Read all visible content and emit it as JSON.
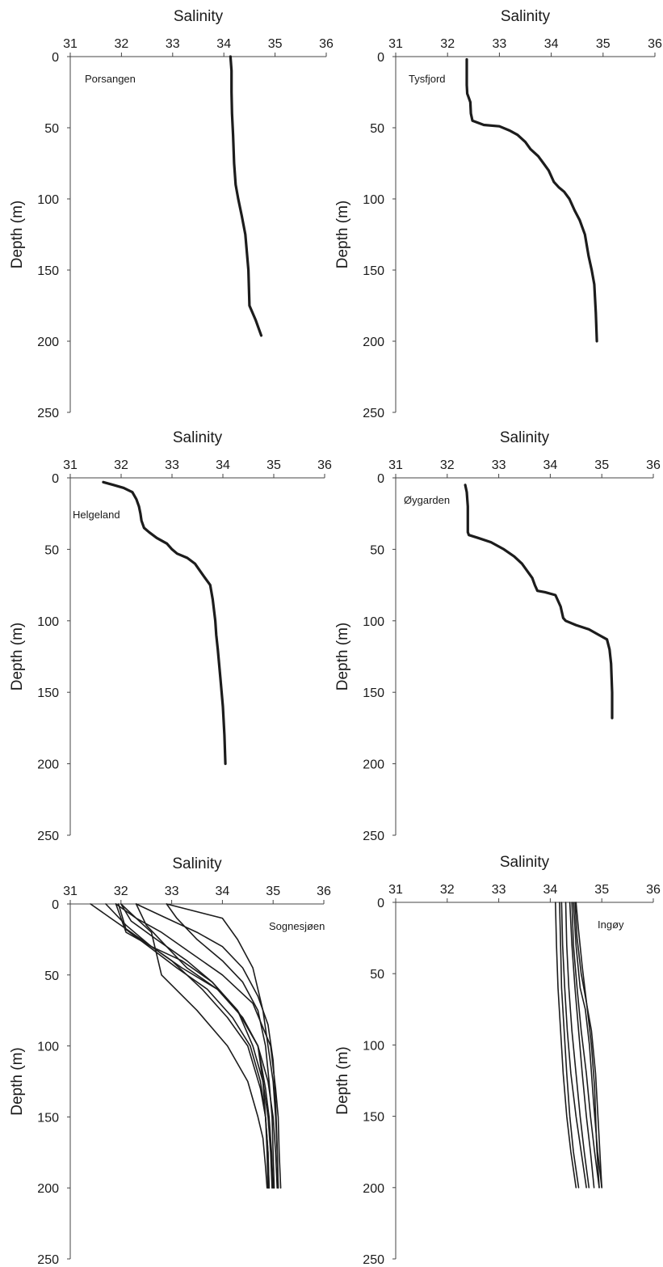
{
  "colors": {
    "line": "#1c1c1c",
    "axis": "#444444",
    "background": "#ffffff"
  },
  "chart_data": [
    {
      "type": "line",
      "title": "Salinity",
      "ylabel": "Depth (m)",
      "label": "Porsangen",
      "xlim": [
        31,
        36
      ],
      "ylim": [
        0,
        250
      ],
      "y_inverted": true,
      "xticks": [
        "31",
        "32",
        "33",
        "34",
        "35",
        "36"
      ],
      "yticks": [
        "0",
        "50",
        "100",
        "150",
        "200",
        "250"
      ],
      "series": [
        {
          "x": [
            34.13,
            34.15,
            34.15,
            34.16,
            34.18,
            34.2,
            34.23,
            34.28,
            34.35,
            34.42,
            34.48,
            34.5,
            34.62,
            34.73
          ],
          "y": [
            0,
            10,
            25,
            40,
            55,
            75,
            90,
            100,
            112,
            125,
            150,
            175,
            185,
            196
          ]
        }
      ]
    },
    {
      "type": "line",
      "title": "Salinity",
      "ylabel": "Depth (m)",
      "label": "Tysfjord",
      "xlim": [
        31,
        36
      ],
      "ylim": [
        0,
        250
      ],
      "y_inverted": true,
      "xticks": [
        "31",
        "32",
        "33",
        "34",
        "35",
        "36"
      ],
      "yticks": [
        "0",
        "50",
        "100",
        "150",
        "200",
        "250"
      ],
      "series": [
        {
          "x": [
            32.37,
            32.37,
            32.37,
            32.38,
            32.4,
            32.44,
            32.45,
            32.48,
            32.7,
            33.0,
            33.2,
            33.35,
            33.5,
            33.6,
            33.75,
            33.85,
            33.95,
            34.05,
            34.15,
            34.25,
            34.35,
            34.45,
            34.55,
            34.65,
            34.72,
            34.78,
            34.83,
            34.86,
            34.88
          ],
          "y": [
            2,
            10,
            20,
            26,
            28,
            32,
            40,
            45,
            48,
            49,
            52,
            55,
            60,
            65,
            70,
            75,
            80,
            88,
            92,
            95,
            100,
            108,
            115,
            125,
            140,
            150,
            160,
            180,
            200
          ]
        }
      ]
    },
    {
      "type": "line",
      "title": "Salinity",
      "ylabel": "Depth (m)",
      "label": "Helgeland",
      "xlim": [
        31,
        36
      ],
      "ylim": [
        0,
        250
      ],
      "y_inverted": true,
      "xticks": [
        "31",
        "32",
        "33",
        "34",
        "35",
        "36"
      ],
      "yticks": [
        "0",
        "50",
        "100",
        "150",
        "200",
        "250"
      ],
      "series": [
        {
          "x": [
            31.65,
            31.85,
            32.05,
            32.22,
            32.3,
            32.35,
            32.38,
            32.4,
            32.45,
            32.55,
            32.7,
            32.9,
            33.0,
            33.1,
            33.3,
            33.45,
            33.55,
            33.65,
            33.75,
            33.8,
            33.85,
            33.87,
            33.9,
            33.95,
            34.0,
            34.03,
            34.05
          ],
          "y": [
            3,
            5,
            7,
            10,
            15,
            20,
            25,
            30,
            35,
            38,
            42,
            46,
            50,
            53,
            56,
            60,
            65,
            70,
            75,
            85,
            100,
            110,
            120,
            140,
            160,
            180,
            200
          ]
        }
      ]
    },
    {
      "type": "line",
      "title": "Salinity",
      "ylabel": "Depth (m)",
      "label": "Øygarden",
      "xlim": [
        31,
        36
      ],
      "ylim": [
        0,
        250
      ],
      "y_inverted": true,
      "xticks": [
        "31",
        "32",
        "33",
        "34",
        "35",
        "36"
      ],
      "yticks": [
        "0",
        "50",
        "100",
        "150",
        "200",
        "250"
      ],
      "series": [
        {
          "x": [
            32.35,
            32.38,
            32.4,
            32.4,
            32.4,
            32.42,
            32.6,
            32.85,
            33.1,
            33.3,
            33.45,
            33.55,
            33.65,
            33.7,
            33.75,
            33.9,
            34.1,
            34.2,
            34.25,
            34.3,
            34.5,
            34.75,
            34.95,
            35.1,
            35.15,
            35.18,
            35.2,
            35.2
          ],
          "y": [
            5,
            10,
            20,
            30,
            38,
            40,
            42,
            45,
            50,
            55,
            60,
            65,
            70,
            75,
            79,
            80,
            82,
            90,
            98,
            100,
            103,
            106,
            110,
            113,
            120,
            130,
            150,
            168
          ]
        }
      ]
    },
    {
      "type": "line",
      "title": "Salinity",
      "ylabel": "Depth (m)",
      "label": "Sognesjøen",
      "xlim": [
        31,
        36
      ],
      "ylim": [
        0,
        250
      ],
      "y_inverted": true,
      "xticks": [
        "31",
        "32",
        "33",
        "34",
        "35",
        "36"
      ],
      "yticks": [
        "0",
        "50",
        "100",
        "150",
        "200",
        "250"
      ],
      "series": [
        {
          "x": [
            31.4,
            31.8,
            32.4,
            33.0,
            33.6,
            34.1,
            34.5,
            34.75,
            34.85,
            34.9,
            34.92
          ],
          "y": [
            0,
            10,
            25,
            40,
            60,
            80,
            100,
            130,
            150,
            175,
            200
          ]
        },
        {
          "x": [
            31.7,
            32.1,
            32.6,
            33.2,
            33.9,
            34.4,
            34.7,
            34.85,
            34.92,
            34.97,
            35.0
          ],
          "y": [
            0,
            15,
            30,
            45,
            60,
            80,
            100,
            130,
            150,
            175,
            200
          ]
        },
        {
          "x": [
            31.9,
            32.3,
            32.8,
            33.4,
            34.0,
            34.6,
            34.95,
            35.05,
            35.1,
            35.12,
            35.15
          ],
          "y": [
            0,
            10,
            20,
            35,
            50,
            70,
            100,
            130,
            150,
            175,
            200
          ]
        },
        {
          "x": [
            32.0,
            32.2,
            32.7,
            33.3,
            33.8,
            34.3,
            34.6,
            34.8,
            34.9,
            34.95,
            34.98
          ],
          "y": [
            0,
            12,
            25,
            40,
            55,
            75,
            100,
            125,
            150,
            175,
            200
          ]
        },
        {
          "x": [
            31.95,
            32.1,
            32.55,
            33.1,
            33.7,
            34.2,
            34.55,
            34.75,
            34.85,
            34.9,
            34.92
          ],
          "y": [
            0,
            18,
            30,
            45,
            60,
            80,
            100,
            125,
            150,
            175,
            200
          ]
        },
        {
          "x": [
            32.3,
            32.5,
            32.9,
            33.3,
            33.9,
            34.4,
            34.7,
            34.8,
            34.85,
            34.88,
            34.9
          ],
          "y": [
            0,
            15,
            30,
            45,
            60,
            80,
            100,
            125,
            150,
            175,
            200
          ]
        },
        {
          "x": [
            32.9,
            33.1,
            33.5,
            34.0,
            34.4,
            34.7,
            34.85,
            34.92,
            34.98,
            35.0,
            35.02
          ],
          "y": [
            0,
            10,
            25,
            40,
            55,
            75,
            100,
            125,
            150,
            175,
            200
          ]
        },
        {
          "x": [
            32.3,
            32.9,
            33.5,
            34.0,
            34.4,
            34.7,
            34.9,
            35.0,
            35.05,
            35.08,
            35.1
          ],
          "y": [
            0,
            10,
            20,
            30,
            45,
            65,
            85,
            110,
            140,
            170,
            200
          ]
        },
        {
          "x": [
            31.9,
            32.1,
            32.6,
            33.2,
            33.8,
            34.3,
            34.7,
            34.9,
            35.0,
            35.05,
            35.08
          ],
          "y": [
            0,
            20,
            30,
            40,
            55,
            75,
            100,
            125,
            150,
            175,
            200
          ]
        },
        {
          "x": [
            32.0,
            32.3,
            32.6,
            32.8,
            33.5,
            34.1,
            34.5,
            34.7,
            34.8,
            34.85,
            34.88
          ],
          "y": [
            0,
            10,
            20,
            50,
            75,
            100,
            125,
            150,
            165,
            185,
            200
          ]
        },
        {
          "x": [
            32.9,
            34.0,
            34.3,
            34.6,
            34.8,
            34.9,
            35.0,
            35.05,
            35.08,
            35.1
          ],
          "y": [
            0,
            10,
            25,
            45,
            75,
            100,
            125,
            150,
            175,
            200
          ]
        }
      ]
    },
    {
      "type": "line",
      "title": "Salinity",
      "ylabel": "Depth (m)",
      "label": "Ingøy",
      "xlim": [
        31,
        36
      ],
      "ylim": [
        0,
        250
      ],
      "y_inverted": true,
      "xticks": [
        "31",
        "32",
        "33",
        "34",
        "35",
        "36"
      ],
      "yticks": [
        "0",
        "50",
        "100",
        "150",
        "200",
        "250"
      ],
      "series": [
        {
          "x": [
            34.1,
            34.12,
            34.15,
            34.2,
            34.25,
            34.32,
            34.4,
            34.5
          ],
          "y": [
            0,
            30,
            60,
            90,
            120,
            150,
            175,
            200
          ]
        },
        {
          "x": [
            34.18,
            34.2,
            34.22,
            34.27,
            34.32,
            34.38,
            34.45,
            34.55
          ],
          "y": [
            0,
            30,
            60,
            90,
            120,
            150,
            175,
            200
          ]
        },
        {
          "x": [
            34.22,
            34.24,
            34.28,
            34.33,
            34.4,
            34.5,
            34.6,
            34.7
          ],
          "y": [
            0,
            30,
            60,
            90,
            120,
            150,
            175,
            200
          ]
        },
        {
          "x": [
            34.3,
            34.32,
            34.36,
            34.42,
            34.5,
            34.58,
            34.66,
            34.75
          ],
          "y": [
            0,
            30,
            60,
            90,
            120,
            150,
            175,
            200
          ]
        },
        {
          "x": [
            34.38,
            34.42,
            34.48,
            34.55,
            34.62,
            34.7,
            34.78,
            34.85
          ],
          "y": [
            0,
            30,
            60,
            90,
            120,
            150,
            175,
            200
          ]
        },
        {
          "x": [
            34.42,
            34.45,
            34.52,
            34.6,
            34.7,
            34.78,
            34.86,
            34.95
          ],
          "y": [
            0,
            30,
            60,
            90,
            120,
            150,
            175,
            200
          ]
        },
        {
          "x": [
            34.45,
            34.5,
            34.58,
            34.68,
            34.76,
            34.84,
            34.92,
            35.0
          ],
          "y": [
            0,
            30,
            60,
            75,
            100,
            140,
            175,
            200
          ]
        },
        {
          "x": [
            34.48,
            34.52,
            34.6,
            34.7,
            34.8,
            34.88,
            34.94,
            35.0
          ],
          "y": [
            0,
            25,
            50,
            70,
            90,
            120,
            160,
            200
          ]
        },
        {
          "x": [
            34.5,
            34.55,
            34.62,
            34.72,
            34.8,
            34.86,
            34.9,
            34.95
          ],
          "y": [
            0,
            20,
            45,
            75,
            100,
            130,
            170,
            200
          ]
        }
      ]
    }
  ]
}
